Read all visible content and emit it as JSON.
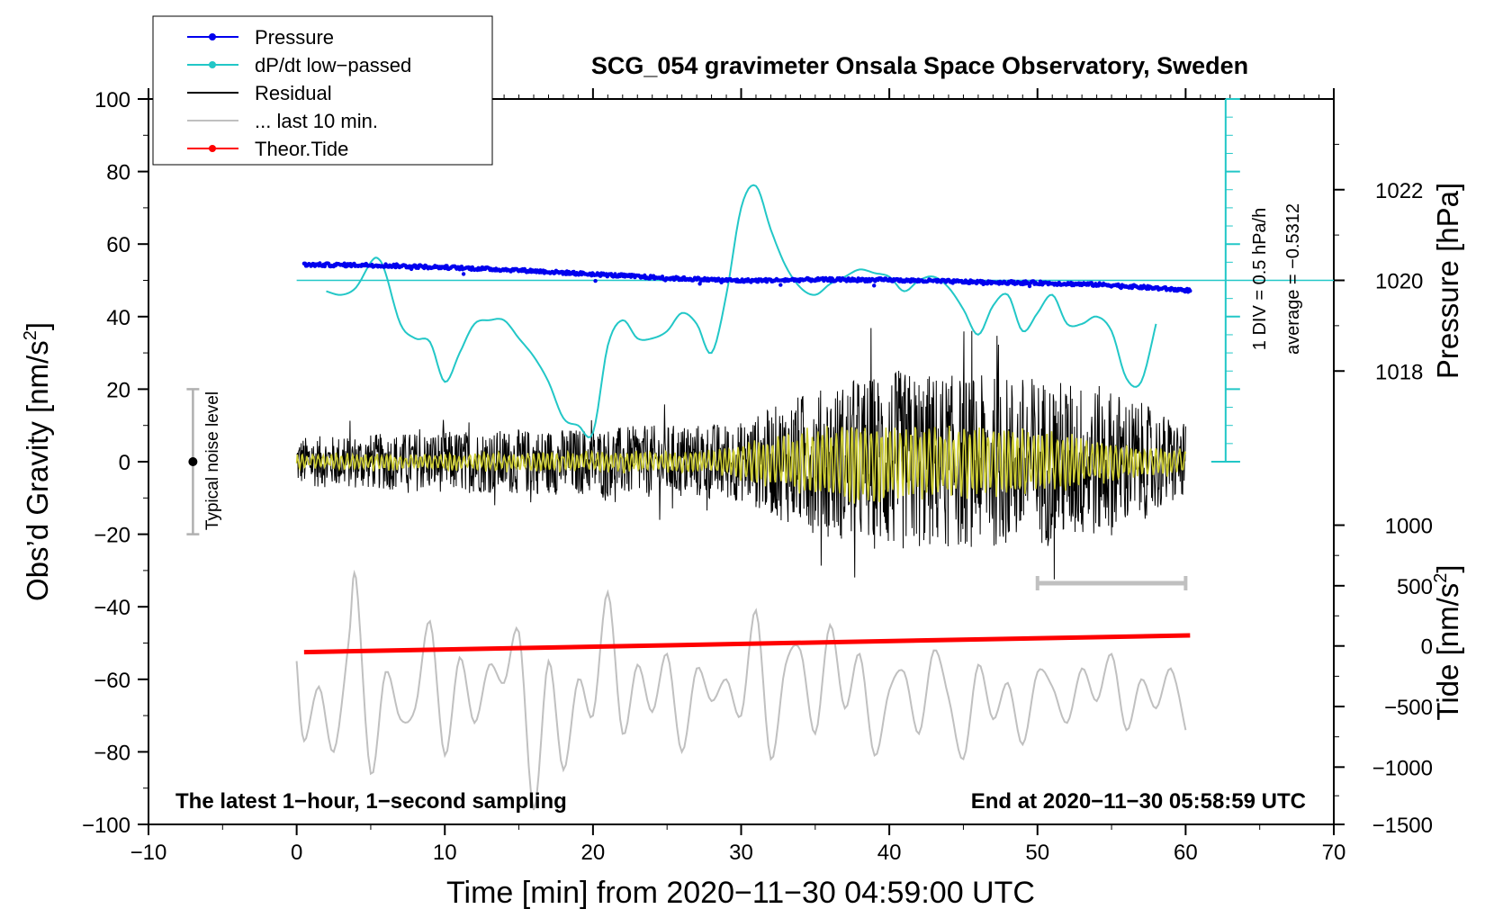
{
  "chart_data": {
    "type": "line",
    "title": "SCG_054 gravimeter Onsala Space Observatory, Sweden",
    "xlabel": "Time [min] from 2020−11−30 04:59:00 UTC",
    "ylabel_left": "Obs’d Gravity [nm/s",
    "ylabel_right_pressure": "Pressure [hPa]",
    "ylabel_right_tide": "Tide [nm/s",
    "superscript": "2",
    "ylabel_suffix": "]",
    "xlim": [
      -10,
      70
    ],
    "ylim": [
      -100,
      100
    ],
    "x_ticks": [
      -10,
      0,
      10,
      20,
      30,
      40,
      50,
      60,
      70
    ],
    "x_tick_labels": [
      "−10",
      "0",
      "10",
      "20",
      "30",
      "40",
      "50",
      "60",
      "70"
    ],
    "y_ticks": [
      100,
      80,
      60,
      40,
      20,
      0,
      -20,
      -40,
      -60,
      -80,
      -100
    ],
    "y_tick_labels": [
      "100",
      "80",
      "60",
      "40",
      "20",
      "0",
      "−20",
      "−40",
      "−60",
      "−80",
      "−100"
    ],
    "pressure_axis": {
      "ticks": [
        1022,
        1020,
        1018
      ],
      "tick_labels": [
        "1022",
        "1020",
        "1018"
      ],
      "gravity_equiv": [
        75,
        50,
        25
      ]
    },
    "tide_axis": {
      "ticks": [
        1000,
        500,
        0,
        -500,
        -1000,
        -1500
      ],
      "tick_labels": [
        "1000",
        "500",
        "0",
        "−500",
        "−1000",
        "−1500"
      ],
      "gravity_equiv": [
        -17.5,
        -34.2,
        -50.8,
        -67.5,
        -84.2,
        -100
      ]
    },
    "legend": [
      {
        "label": "Pressure",
        "color": "#0000ee",
        "marker": true
      },
      {
        "label": "dP/dt low−passed",
        "color": "#22c7c7",
        "marker": true
      },
      {
        "label": "Residual",
        "color": "#000000",
        "marker": false
      },
      {
        "label": "... last 10 min.",
        "color": "#c0c0c0",
        "marker": false
      },
      {
        "label": "Theor.Tide",
        "color": "#ff0000",
        "marker": true
      }
    ],
    "series": [
      {
        "name": "Pressure",
        "color": "#0000ee",
        "x": [
          0.5,
          5,
          10,
          15,
          20,
          25,
          30,
          35,
          40,
          45,
          50,
          55,
          60.3
        ],
        "y": [
          54.3,
          54.2,
          53.6,
          52.8,
          51.7,
          50.6,
          49.9,
          50.2,
          50.1,
          49.6,
          49.3,
          48.7,
          47.2
        ]
      },
      {
        "name": "dP/dt low−passed",
        "color": "#22c7c7",
        "x": [
          2,
          3,
          4,
          5,
          5.5,
          6,
          7,
          8,
          9,
          10,
          11,
          12,
          13,
          14,
          15,
          16,
          17,
          18,
          19,
          20,
          21,
          22,
          23,
          24,
          25,
          26,
          27,
          28,
          29,
          30,
          31,
          32,
          33,
          34,
          35,
          36,
          37,
          38,
          39,
          40,
          41,
          42,
          43,
          44,
          45,
          46,
          47,
          48,
          49,
          50,
          51,
          52,
          53,
          54,
          55,
          56,
          57,
          58
        ],
        "y": [
          47,
          46,
          48,
          55,
          56,
          52,
          38,
          34,
          33,
          22,
          30,
          38,
          39,
          39,
          34,
          29,
          22,
          12,
          10,
          8,
          32,
          39,
          34,
          34,
          36,
          41,
          38,
          30,
          46,
          70,
          76,
          64,
          54,
          48,
          46,
          49,
          51,
          53,
          52,
          51,
          47,
          50,
          51,
          48,
          42,
          35,
          43,
          46,
          36,
          41,
          46,
          38,
          38,
          40,
          36,
          23,
          22,
          38
        ]
      },
      {
        "name": "Residual",
        "color": "#000000",
        "envelope": [
          {
            "x": 0,
            "amplitude": 8
          },
          {
            "x": 10,
            "amplitude": 10
          },
          {
            "x": 20,
            "amplitude": 11
          },
          {
            "x": 30,
            "amplitude": 13
          },
          {
            "x": 34,
            "amplitude": 22
          },
          {
            "x": 40,
            "amplitude": 30
          },
          {
            "x": 45,
            "amplitude": 28
          },
          {
            "x": 50,
            "amplitude": 28
          },
          {
            "x": 55,
            "amplitude": 24
          },
          {
            "x": 60,
            "amplitude": 12
          }
        ]
      },
      {
        "name": "Residual low−passed",
        "color": "#cccc33",
        "envelope": [
          {
            "x": 0,
            "amplitude": 2
          },
          {
            "x": 28,
            "amplitude": 3
          },
          {
            "x": 33,
            "amplitude": 8
          },
          {
            "x": 38,
            "amplitude": 12
          },
          {
            "x": 45,
            "amplitude": 10
          },
          {
            "x": 50,
            "amplitude": 9
          },
          {
            "x": 56,
            "amplitude": 5
          },
          {
            "x": 60,
            "amplitude": 3
          }
        ]
      },
      {
        "name": "... last 10 min.",
        "color": "#c0c0c0",
        "x": [
          0,
          0.5,
          1.5,
          2.5,
          3.5,
          4,
          5,
          6,
          7,
          8,
          9,
          10,
          11,
          12,
          13,
          14,
          15,
          16,
          17,
          18,
          19,
          20,
          21,
          22,
          23,
          24,
          25,
          26,
          27,
          28,
          29,
          30,
          31,
          32,
          33,
          34,
          35,
          36,
          37,
          38,
          39,
          40,
          41,
          42,
          43,
          44,
          45,
          46,
          47,
          48,
          49,
          50,
          51,
          52,
          53,
          54,
          55,
          56,
          57,
          58,
          59,
          60
        ],
        "y": [
          -55,
          -77,
          -62,
          -80,
          -50,
          -32,
          -86,
          -58,
          -71,
          -68,
          -44,
          -81,
          -54,
          -72,
          -56,
          -61,
          -47,
          -96,
          -55,
          -85,
          -60,
          -70,
          -36,
          -75,
          -56,
          -69,
          -53,
          -80,
          -57,
          -66,
          -60,
          -70,
          -41,
          -82,
          -56,
          -52,
          -75,
          -45,
          -68,
          -53,
          -81,
          -63,
          -58,
          -75,
          -52,
          -65,
          -82,
          -56,
          -71,
          -61,
          -78,
          -58,
          -62,
          -72,
          -57,
          -66,
          -53,
          -74,
          -60,
          -68,
          -57,
          -74
        ]
      },
      {
        "name": "Theor.Tide",
        "color": "#ff0000",
        "x": [
          0.5,
          60.3
        ],
        "y": [
          -52.5,
          -47.9
        ]
      }
    ],
    "reference_line": {
      "y": 50,
      "label": "average = −0.5312"
    },
    "dpdt_scale": {
      "label": "1 DIV = 0.5 hPa/h",
      "x": 62.7,
      "y_from": 0,
      "y_to": 100,
      "divisions": 20
    },
    "noise_bar": {
      "x": -7,
      "y_from": -20,
      "y_to": 20,
      "center": 0,
      "label": "Typical noise level"
    },
    "window_bar": {
      "x_from": 50,
      "x_to": 60,
      "y": -33.5
    },
    "annotations": {
      "bottom_left": "The latest 1−hour, 1−second sampling",
      "bottom_right": "End at 2020−11−30 05:58:59 UTC"
    }
  }
}
